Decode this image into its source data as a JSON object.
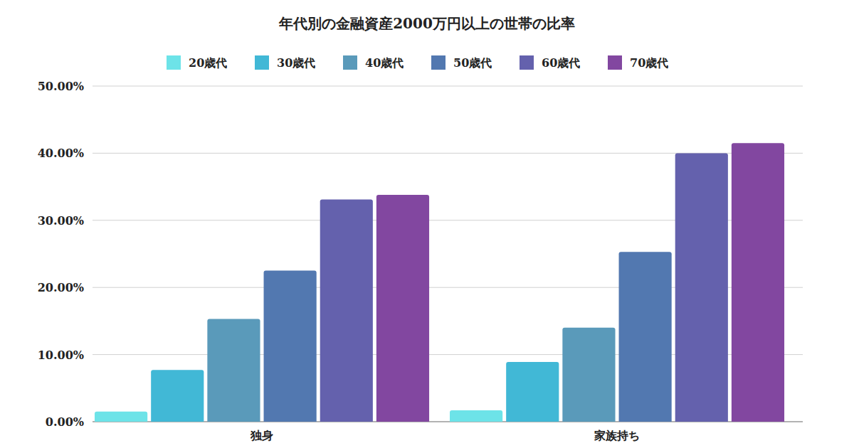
{
  "chart_data": {
    "type": "bar",
    "title": "年代別の金融資産2000万円以上の世帯の比率",
    "categories": [
      "独身",
      "家族持ち"
    ],
    "series": [
      {
        "name": "20歳代",
        "color": "#6de3e8",
        "values": [
          1.5,
          1.7
        ]
      },
      {
        "name": "30歳代",
        "color": "#41b8d6",
        "values": [
          7.7,
          8.9
        ]
      },
      {
        "name": "40歳代",
        "color": "#5a9aba",
        "values": [
          15.3,
          14.0
        ]
      },
      {
        "name": "50歳代",
        "color": "#5278b0",
        "values": [
          22.5,
          25.3
        ]
      },
      {
        "name": "60歳代",
        "color": "#6461ad",
        "values": [
          33.1,
          40.0
        ]
      },
      {
        "name": "70歳代",
        "color": "#8247a0",
        "values": [
          33.8,
          41.5
        ]
      }
    ],
    "ylim": [
      0,
      50
    ],
    "yticks": [
      {
        "value": 0,
        "label": "0.00%"
      },
      {
        "value": 10,
        "label": "10.00%"
      },
      {
        "value": 20,
        "label": "20.00%"
      },
      {
        "value": 30,
        "label": "30.00%"
      },
      {
        "value": 40,
        "label": "40.00%"
      },
      {
        "value": 50,
        "label": "50.00%"
      }
    ],
    "grid": true,
    "legend": "top"
  }
}
